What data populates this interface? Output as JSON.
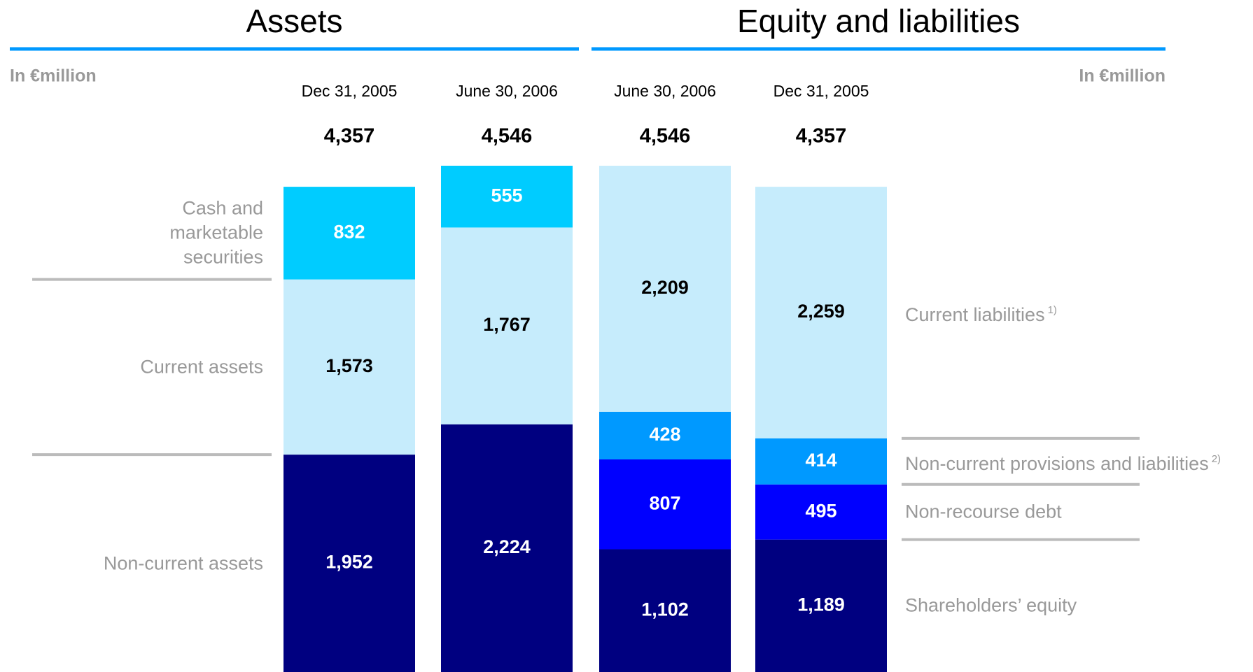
{
  "chart_data": [
    {
      "type": "stacked-bar",
      "title": "Assets",
      "unit": "In €million",
      "categories": [
        "Dec 31, 2005",
        "June 30, 2006"
      ],
      "totals": [
        4357,
        4546
      ],
      "total_labels": [
        "4,357",
        "4,546"
      ],
      "series": [
        {
          "name": "Non-current assets",
          "color": "#000080",
          "values": [
            1952,
            2224
          ],
          "value_labels": [
            "1,952",
            "2,224"
          ]
        },
        {
          "name": "Current assets",
          "color": "#c6ecfc",
          "values": [
            1573,
            1767
          ],
          "value_labels": [
            "1,573",
            "1,767"
          ]
        },
        {
          "name": "Cash and marketable securities",
          "color": "#00ccff",
          "values": [
            832,
            555
          ],
          "value_labels": [
            "832",
            "555"
          ]
        }
      ]
    },
    {
      "type": "stacked-bar",
      "title": "Equity and liabilities",
      "unit": "In €million",
      "categories": [
        "June 30, 2006",
        "Dec 31, 2005"
      ],
      "totals": [
        4546,
        4357
      ],
      "total_labels": [
        "4,546",
        "4,357"
      ],
      "series": [
        {
          "name": "Shareholders’ equity",
          "color": "#000080",
          "values": [
            1102,
            1189
          ],
          "value_labels": [
            "1,102",
            "1,189"
          ]
        },
        {
          "name": "Non-recourse debt",
          "color": "#0000ff",
          "values": [
            807,
            495
          ],
          "value_labels": [
            "807",
            "495"
          ]
        },
        {
          "name": "Non-current provisions and liabilities",
          "note": "2)",
          "color": "#0099ff",
          "values": [
            428,
            414
          ],
          "value_labels": [
            "428",
            "414"
          ]
        },
        {
          "name": "Current liabilities",
          "note": "1)",
          "color": "#c6ecfc",
          "values": [
            2209,
            2259
          ],
          "value_labels": [
            "2,209",
            "2,259"
          ]
        }
      ]
    }
  ]
}
